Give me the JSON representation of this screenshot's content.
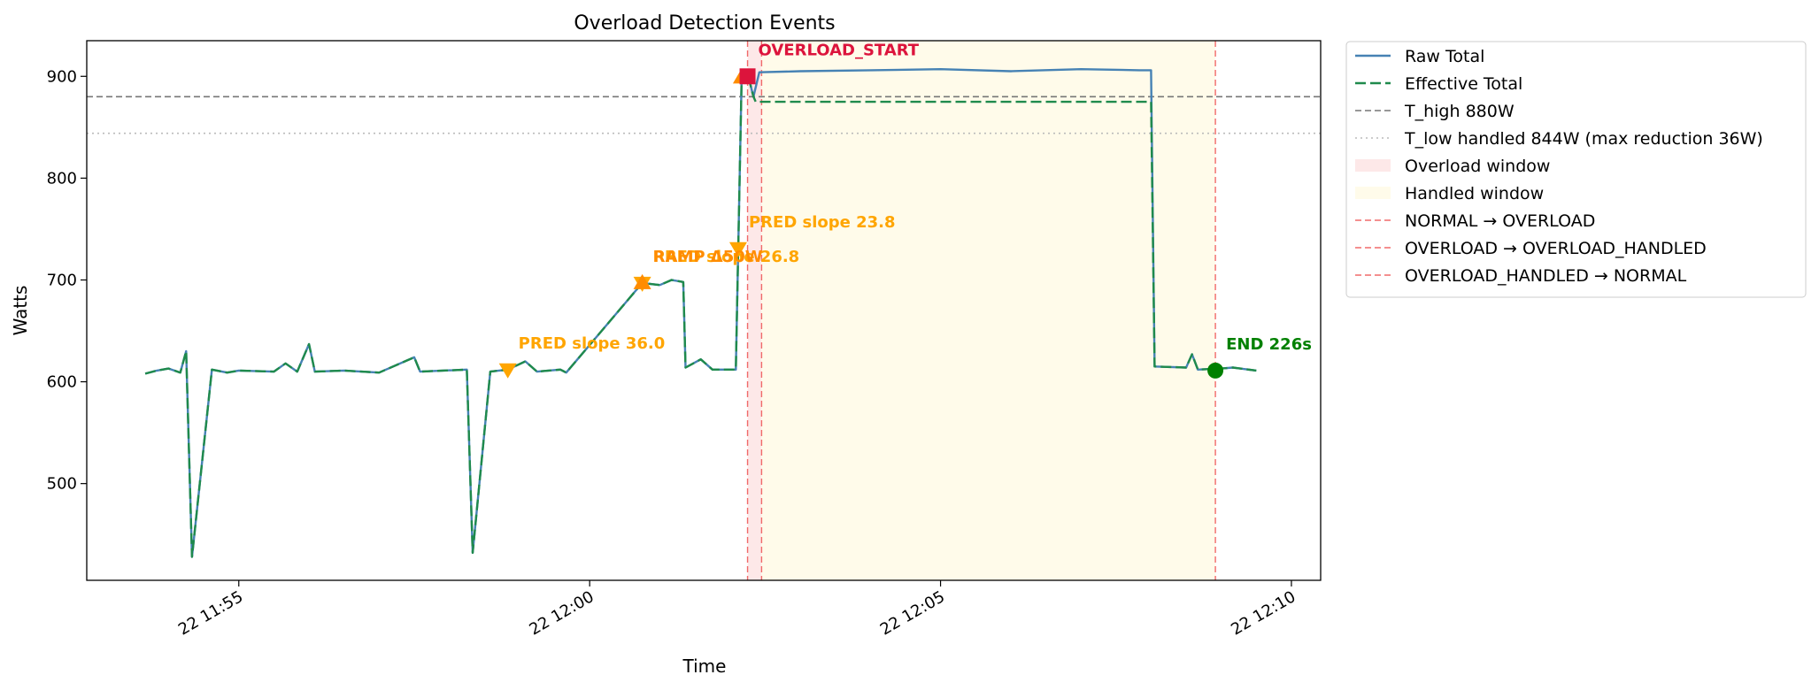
{
  "chart_data": {
    "type": "line",
    "title": "Overload Detection Events",
    "xlabel": "Time",
    "ylabel": "Watts",
    "x_range": [
      "2024-05-22T11:52:50",
      "2024-05-22T12:10:25"
    ],
    "ylim": [
      405,
      935
    ],
    "x_ticks": [
      {
        "t": "2024-05-22T11:55:00",
        "label": "22 11:55"
      },
      {
        "t": "2024-05-22T12:00:00",
        "label": "22 12:00"
      },
      {
        "t": "2024-05-22T12:05:00",
        "label": "22 12:05"
      },
      {
        "t": "2024-05-22T12:10:00",
        "label": "22 12:10"
      }
    ],
    "y_ticks": [
      500,
      600,
      700,
      800,
      900
    ],
    "grid": false,
    "legend_position": "outside-right",
    "series": [
      {
        "name": "Raw Total",
        "color": "#4682b4",
        "style": "solid",
        "points": [
          [
            "2024-05-22T11:53:40",
            608
          ],
          [
            "2024-05-22T11:53:50",
            611
          ],
          [
            "2024-05-22T11:54:00",
            613
          ],
          [
            "2024-05-22T11:54:10",
            609
          ],
          [
            "2024-05-22T11:54:15",
            630
          ],
          [
            "2024-05-22T11:54:20",
            428
          ],
          [
            "2024-05-22T11:54:37",
            612
          ],
          [
            "2024-05-22T11:54:50",
            609
          ],
          [
            "2024-05-22T11:55:00",
            611
          ],
          [
            "2024-05-22T11:55:30",
            610
          ],
          [
            "2024-05-22T11:55:40",
            618
          ],
          [
            "2024-05-22T11:55:50",
            610
          ],
          [
            "2024-05-22T11:56:00",
            637
          ],
          [
            "2024-05-22T11:56:05",
            610
          ],
          [
            "2024-05-22T11:56:30",
            611
          ],
          [
            "2024-05-22T11:57:00",
            609
          ],
          [
            "2024-05-22T11:57:30",
            624
          ],
          [
            "2024-05-22T11:57:35",
            610
          ],
          [
            "2024-05-22T11:58:15",
            612
          ],
          [
            "2024-05-22T11:58:20",
            432
          ],
          [
            "2024-05-22T11:58:35",
            610
          ],
          [
            "2024-05-22T11:58:50",
            612
          ],
          [
            "2024-05-22T11:59:05",
            620
          ],
          [
            "2024-05-22T11:59:15",
            610
          ],
          [
            "2024-05-22T11:59:35",
            612
          ],
          [
            "2024-05-22T11:59:40",
            609
          ],
          [
            "2024-05-22T12:00:45",
            697
          ],
          [
            "2024-05-22T12:01:00",
            695
          ],
          [
            "2024-05-22T12:01:10",
            700
          ],
          [
            "2024-05-22T12:01:20",
            698
          ],
          [
            "2024-05-22T12:01:22",
            614
          ],
          [
            "2024-05-22T12:01:35",
            622
          ],
          [
            "2024-05-22T12:01:45",
            612
          ],
          [
            "2024-05-22T12:02:05",
            612
          ],
          [
            "2024-05-22T12:02:10",
            900
          ],
          [
            "2024-05-22T12:02:15",
            903
          ],
          [
            "2024-05-22T12:02:20",
            880
          ],
          [
            "2024-05-22T12:02:25",
            904
          ],
          [
            "2024-05-22T12:03:00",
            905
          ],
          [
            "2024-05-22T12:04:00",
            906
          ],
          [
            "2024-05-22T12:05:00",
            907
          ],
          [
            "2024-05-22T12:06:00",
            905
          ],
          [
            "2024-05-22T12:07:00",
            907
          ],
          [
            "2024-05-22T12:07:50",
            906
          ],
          [
            "2024-05-22T12:08:00",
            906
          ],
          [
            "2024-05-22T12:08:03",
            615
          ],
          [
            "2024-05-22T12:08:30",
            614
          ],
          [
            "2024-05-22T12:08:35",
            627
          ],
          [
            "2024-05-22T12:08:40",
            612
          ],
          [
            "2024-05-22T12:09:00",
            613
          ],
          [
            "2024-05-22T12:09:10",
            614
          ],
          [
            "2024-05-22T12:09:30",
            611
          ]
        ]
      },
      {
        "name": "Effective Total",
        "color": "#1f8a4c",
        "style": "dashed",
        "points": [
          [
            "2024-05-22T11:53:40",
            608
          ],
          [
            "2024-05-22T11:53:50",
            611
          ],
          [
            "2024-05-22T11:54:00",
            613
          ],
          [
            "2024-05-22T11:54:10",
            609
          ],
          [
            "2024-05-22T11:54:15",
            630
          ],
          [
            "2024-05-22T11:54:20",
            428
          ],
          [
            "2024-05-22T11:54:37",
            612
          ],
          [
            "2024-05-22T11:54:50",
            609
          ],
          [
            "2024-05-22T11:55:00",
            611
          ],
          [
            "2024-05-22T11:55:30",
            610
          ],
          [
            "2024-05-22T11:55:40",
            618
          ],
          [
            "2024-05-22T11:55:50",
            610
          ],
          [
            "2024-05-22T11:56:00",
            637
          ],
          [
            "2024-05-22T11:56:05",
            610
          ],
          [
            "2024-05-22T11:56:30",
            611
          ],
          [
            "2024-05-22T11:57:00",
            609
          ],
          [
            "2024-05-22T11:57:30",
            624
          ],
          [
            "2024-05-22T11:57:35",
            610
          ],
          [
            "2024-05-22T11:58:15",
            612
          ],
          [
            "2024-05-22T11:58:20",
            432
          ],
          [
            "2024-05-22T11:58:35",
            610
          ],
          [
            "2024-05-22T11:58:50",
            612
          ],
          [
            "2024-05-22T11:59:05",
            620
          ],
          [
            "2024-05-22T11:59:15",
            610
          ],
          [
            "2024-05-22T11:59:35",
            612
          ],
          [
            "2024-05-22T11:59:40",
            609
          ],
          [
            "2024-05-22T12:00:45",
            697
          ],
          [
            "2024-05-22T12:01:00",
            695
          ],
          [
            "2024-05-22T12:01:10",
            700
          ],
          [
            "2024-05-22T12:01:20",
            698
          ],
          [
            "2024-05-22T12:01:22",
            614
          ],
          [
            "2024-05-22T12:01:35",
            622
          ],
          [
            "2024-05-22T12:01:45",
            612
          ],
          [
            "2024-05-22T12:02:05",
            612
          ],
          [
            "2024-05-22T12:02:10",
            900
          ],
          [
            "2024-05-22T12:02:15",
            903
          ],
          [
            "2024-05-22T12:02:20",
            880
          ],
          [
            "2024-05-22T12:02:22",
            875
          ],
          [
            "2024-05-22T12:08:00",
            875
          ],
          [
            "2024-05-22T12:08:03",
            615
          ],
          [
            "2024-05-22T12:08:30",
            614
          ],
          [
            "2024-05-22T12:08:35",
            627
          ],
          [
            "2024-05-22T12:08:40",
            612
          ],
          [
            "2024-05-22T12:09:00",
            613
          ],
          [
            "2024-05-22T12:09:10",
            614
          ],
          [
            "2024-05-22T12:09:30",
            611
          ]
        ]
      }
    ],
    "hlines": [
      {
        "name": "T_high 880W",
        "y": 880,
        "color": "#777777",
        "style": "dashed"
      },
      {
        "name": "T_low handled 844W (max reduction 36W)",
        "y": 844,
        "color": "#bbbbbb",
        "style": "dotted"
      }
    ],
    "spans": [
      {
        "name": "Overload window",
        "start": "2024-05-22T12:02:15",
        "end": "2024-05-22T12:02:27",
        "color": "#fde8e8"
      },
      {
        "name": "Handled window",
        "start": "2024-05-22T12:02:27",
        "end": "2024-05-22T12:08:55",
        "color": "#fffbea"
      }
    ],
    "vlines": [
      {
        "name": "NORMAL → OVERLOAD",
        "t": "2024-05-22T12:02:15",
        "color": "#f06a6a"
      },
      {
        "name": "OVERLOAD → OVERLOAD_HANDLED",
        "t": "2024-05-22T12:02:27",
        "color": "#f06a6a"
      },
      {
        "name": "OVERLOAD_HANDLED → NORMAL",
        "t": "2024-05-22T12:08:55",
        "color": "#f06a6a"
      }
    ],
    "markers": [
      {
        "t": "2024-05-22T11:58:50",
        "y": 612,
        "shape": "triangle-down",
        "color": "#ffa500",
        "label": "PRED slope 36.0",
        "label_color": "#ffa500"
      },
      {
        "t": "2024-05-22T12:00:45",
        "y": 697,
        "shape": "triangle-down",
        "color": "#ffa500",
        "label": "PRED slope 26.8",
        "label_color": "#ffa500"
      },
      {
        "t": "2024-05-22T12:00:45",
        "y": 697,
        "shape": "triangle-up",
        "color": "#ff8c00",
        "label": "RAMP Δ50W",
        "label_color": "#ff8c00"
      },
      {
        "t": "2024-05-22T12:02:07",
        "y": 731,
        "shape": "triangle-down",
        "color": "#ffa500",
        "label": "PRED slope 23.8",
        "label_color": "#ffa500"
      },
      {
        "t": "2024-05-22T12:02:10",
        "y": 899,
        "shape": "triangle-up",
        "color": "#ff8c00",
        "label": "",
        "label_color": "#ff8c00"
      },
      {
        "t": "2024-05-22T12:02:15",
        "y": 900,
        "shape": "square",
        "color": "#dc143c",
        "label": "OVERLOAD_START",
        "label_color": "#dc143c"
      },
      {
        "t": "2024-05-22T12:08:55",
        "y": 611,
        "shape": "circle",
        "color": "#008000",
        "label": "END 226s",
        "label_color": "#008000"
      }
    ],
    "legend": [
      {
        "label": "Raw Total",
        "kind": "line",
        "color": "#4682b4",
        "style": "solid"
      },
      {
        "label": "Effective Total",
        "kind": "line",
        "color": "#1f8a4c",
        "style": "dashed"
      },
      {
        "label": "T_high 880W",
        "kind": "line",
        "color": "#777777",
        "style": "dashed-thin"
      },
      {
        "label": "T_low handled 844W (max reduction 36W)",
        "kind": "line",
        "color": "#bbbbbb",
        "style": "dotted"
      },
      {
        "label": "Overload window",
        "kind": "patch",
        "color": "#fde8e8",
        "style": "solid"
      },
      {
        "label": "Handled window",
        "kind": "patch",
        "color": "#fffbea",
        "style": "solid"
      },
      {
        "label": "NORMAL → OVERLOAD",
        "kind": "line",
        "color": "#f06a6a",
        "style": "dashed-thin"
      },
      {
        "label": "OVERLOAD → OVERLOAD_HANDLED",
        "kind": "line",
        "color": "#f06a6a",
        "style": "dashed-thin"
      },
      {
        "label": "OVERLOAD_HANDLED → NORMAL",
        "kind": "line",
        "color": "#f06a6a",
        "style": "dashed-thin"
      }
    ]
  }
}
